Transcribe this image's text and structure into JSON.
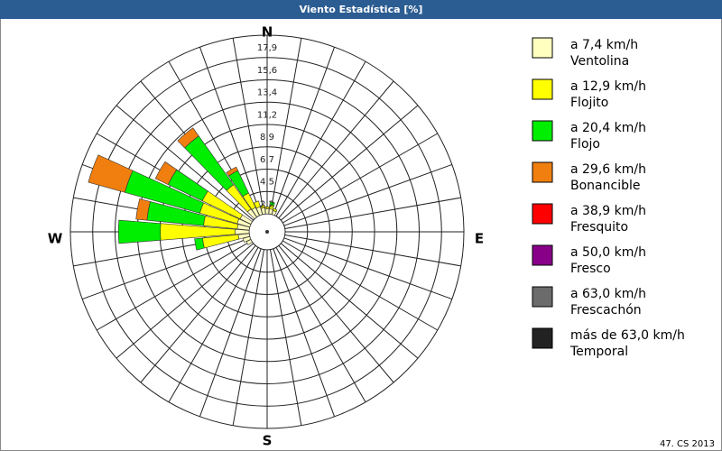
{
  "chart_data": {
    "type": "windrose",
    "title": "Viento Estadística [%]",
    "compass": {
      "n": "N",
      "e": "E",
      "s": "S",
      "w": "W"
    },
    "footer": "47. CS 2013",
    "x": [
      240,
      250,
      260,
      270,
      280,
      290,
      300,
      320,
      330,
      340,
      350,
      0,
      10,
      20
    ],
    "ylim": [
      0,
      17.92
    ],
    "yticks": [
      {
        "value": 2.24,
        "label": "2,2"
      },
      {
        "value": 4.48,
        "label": "4,5"
      },
      {
        "value": 6.72,
        "label": "6,7"
      },
      {
        "value": 8.96,
        "label": "8,9"
      },
      {
        "value": 11.2,
        "label": "11,2"
      },
      {
        "value": 13.44,
        "label": "13,4"
      },
      {
        "value": 15.68,
        "label": "15,6"
      },
      {
        "value": 17.92,
        "label": "17,9"
      }
    ],
    "series": [
      {
        "name": "a 7,4 km/h",
        "label": "Ventolina",
        "color": "#ffffc0",
        "values": [
          0.5,
          0.7,
          1.1,
          1.4,
          1.2,
          1.3,
          1.2,
          1.0,
          0.9,
          0.8,
          0.6,
          0.5,
          0.5,
          0.4
        ]
      },
      {
        "name": "a 12,9 km/h",
        "label": "Flojito",
        "color": "#ffff00",
        "values": [
          0,
          0,
          3.6,
          7.5,
          3.4,
          3.9,
          4.2,
          3.0,
          1.6,
          0.6,
          0.3,
          0.2,
          0.4,
          0.2
        ]
      },
      {
        "name": "a 20,4 km/h",
        "label": "Flojo",
        "color": "#00ee00",
        "values": [
          0,
          0,
          0.8,
          4.2,
          5.7,
          7.8,
          3.8,
          6.0,
          2.5,
          0,
          0,
          0,
          0.3,
          0
        ]
      },
      {
        "name": "a 29,6 km/h",
        "label": "Bonancible",
        "color": "#f07f10",
        "values": [
          0,
          0,
          0,
          0,
          1.1,
          3.8,
          1.4,
          1.0,
          0.4,
          0,
          0,
          0,
          0,
          0
        ]
      },
      {
        "name": "a 38,9 km/h",
        "label": "Fresquito",
        "color": "#ff0000",
        "values": [
          0,
          0,
          0,
          0,
          0,
          0,
          0,
          0,
          0,
          0,
          0,
          0,
          0,
          0
        ]
      },
      {
        "name": "a 50,0 km/h",
        "label": "Fresco",
        "color": "#880088",
        "values": [
          0,
          0,
          0,
          0,
          0,
          0,
          0,
          0,
          0,
          0,
          0,
          0,
          0,
          0
        ]
      },
      {
        "name": "a 63,0 km/h",
        "label": "Frescachón",
        "color": "#6b6b6b",
        "values": [
          0,
          0,
          0,
          0,
          0,
          0,
          0,
          0,
          0,
          0,
          0,
          0,
          0,
          0
        ]
      },
      {
        "name": "más de 63,0 km/h",
        "label": "Temporal",
        "color": "#222222",
        "values": [
          0,
          0,
          0,
          0,
          0,
          0,
          0,
          0,
          0,
          0,
          0,
          0,
          0,
          0
        ]
      }
    ]
  }
}
